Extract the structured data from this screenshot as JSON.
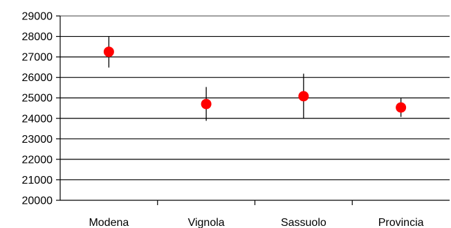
{
  "chart_data": {
    "type": "scatter",
    "title": "",
    "xlabel": "",
    "ylabel": "",
    "categories": [
      "Modena",
      "Vignola",
      "Sassuolo",
      "Provincia"
    ],
    "values": [
      27250,
      24700,
      25080,
      24530
    ],
    "error_bars": [
      {
        "low": 26480,
        "high": 27980
      },
      {
        "low": 23880,
        "high": 25530
      },
      {
        "low": 23980,
        "high": 26180
      },
      {
        "low": 24070,
        "high": 24990
      }
    ],
    "ylim": [
      20000,
      29000
    ],
    "yticks": [
      "20000",
      "21000",
      "22000",
      "23000",
      "24000",
      "25000",
      "26000",
      "27000",
      "28000",
      "29000"
    ],
    "grid": true,
    "colors": {
      "marker": "#ff0000",
      "grid": "#000000",
      "axis": "#000000",
      "top_border": "#a0a0a0"
    }
  }
}
